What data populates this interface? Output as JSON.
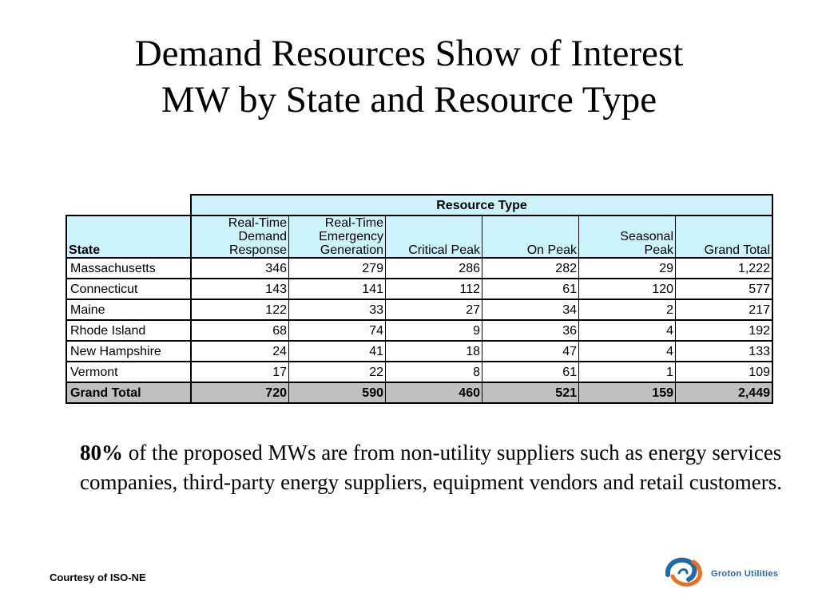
{
  "title": {
    "line1": "Demand Resources Show of Interest",
    "line2": "MW by State and Resource Type"
  },
  "table": {
    "group_header": "Resource Type",
    "state_header": "State",
    "columns": [
      {
        "lines": [
          "Real-Time",
          "Demand",
          "Response"
        ]
      },
      {
        "lines": [
          "Real-Time",
          "Emergency",
          "Generation"
        ]
      },
      {
        "lines": [
          "",
          "",
          "Critical Peak"
        ]
      },
      {
        "lines": [
          "",
          "",
          "On Peak"
        ]
      },
      {
        "lines": [
          "",
          "Seasonal",
          "Peak"
        ]
      },
      {
        "lines": [
          "",
          "",
          "Grand Total"
        ]
      }
    ],
    "rows": [
      {
        "state": "Massachusetts",
        "values": [
          "346",
          "279",
          "286",
          "282",
          "29",
          "1,222"
        ]
      },
      {
        "state": "Connecticut",
        "values": [
          "143",
          "141",
          "112",
          "61",
          "120",
          "577"
        ]
      },
      {
        "state": "Maine",
        "values": [
          "122",
          "33",
          "27",
          "34",
          "2",
          "217"
        ]
      },
      {
        "state": "Rhode Island",
        "values": [
          "68",
          "74",
          "9",
          "36",
          "4",
          "192"
        ]
      },
      {
        "state": "New Hampshire",
        "values": [
          "24",
          "41",
          "18",
          "47",
          "4",
          "133"
        ]
      },
      {
        "state": "Vermont",
        "values": [
          "17",
          "22",
          "8",
          "61",
          "1",
          "109"
        ]
      }
    ],
    "total": {
      "state": "Grand Total",
      "values": [
        "720",
        "590",
        "460",
        "521",
        "159",
        "2,449"
      ]
    }
  },
  "note": {
    "highlight": "80%",
    "text": " of the proposed MWs are from non-utility suppliers such as energy services companies, third-party energy suppliers, equipment vendors and retail customers."
  },
  "footer": {
    "courtesy": "Courtesy of ISO-NE",
    "logo_text": "Groton Utilities",
    "logo_icon": "groton-swirl-logo"
  },
  "colors": {
    "header_fill": "#ccf2fb",
    "total_fill": "#c0c0c0",
    "logo_blue": "#1f6aa8",
    "logo_orange": "#e8701e"
  }
}
